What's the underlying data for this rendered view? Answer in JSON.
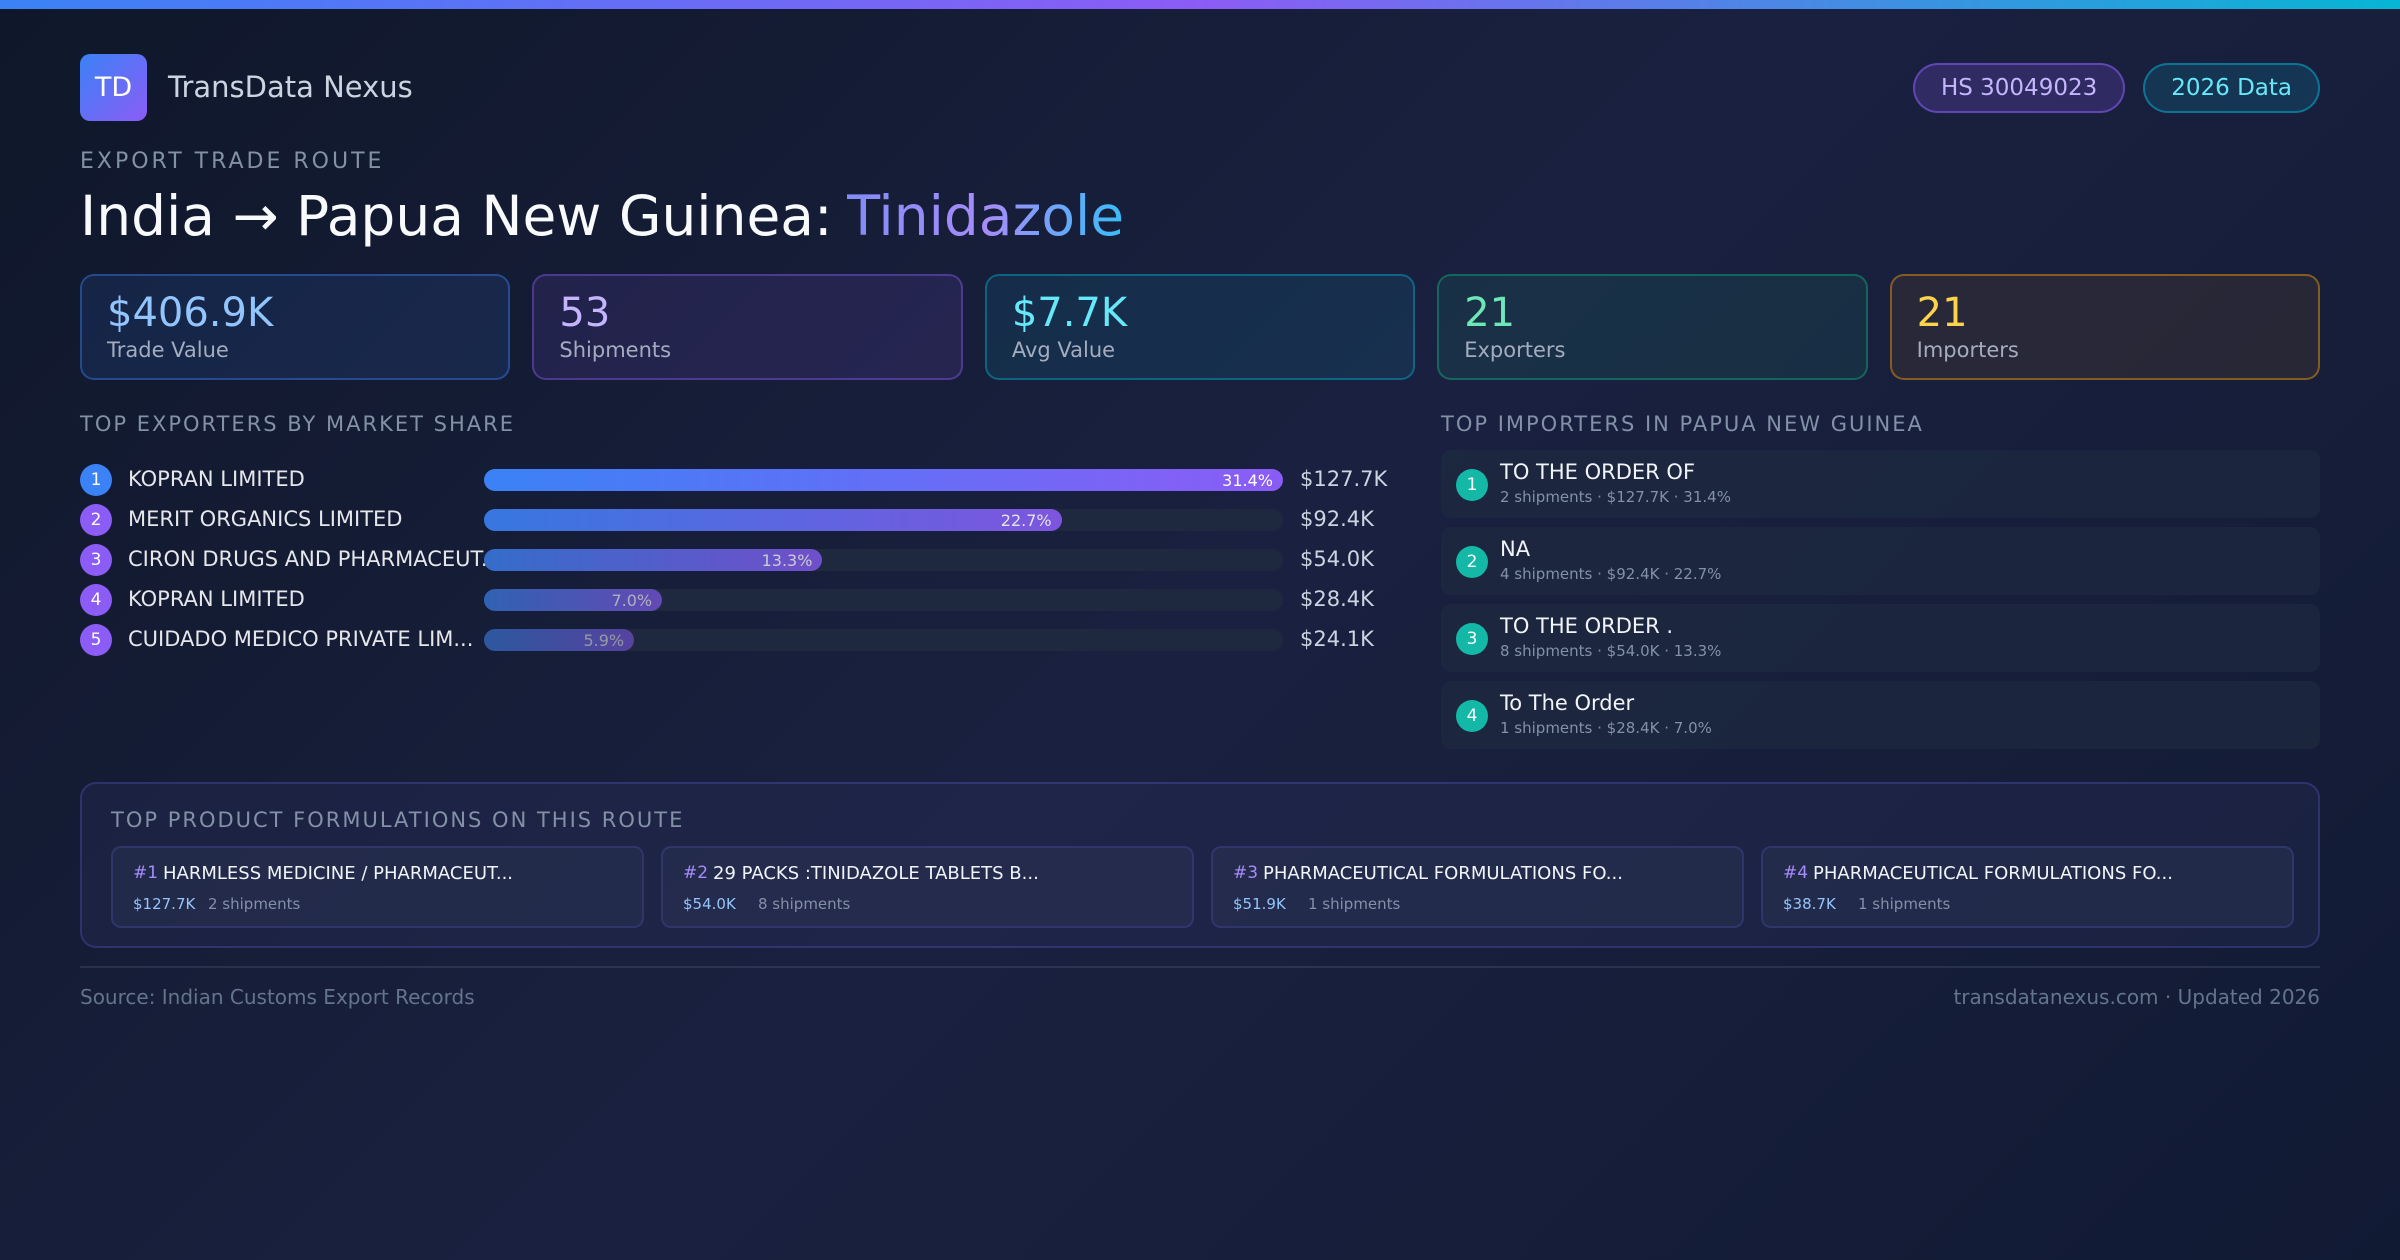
{
  "header": {
    "logo": "TD",
    "brand": "TransData Nexus",
    "badges": [
      "HS 30049023",
      "2026 Data"
    ]
  },
  "route": {
    "eyebrow": "EXPORT TRADE ROUTE",
    "title_prefix": "India → Papua New Guinea:",
    "title_product": "Tinidazole"
  },
  "kpis": [
    {
      "value": "$406.9K",
      "label": "Trade Value"
    },
    {
      "value": "53",
      "label": "Shipments"
    },
    {
      "value": "$7.7K",
      "label": "Avg Value"
    },
    {
      "value": "21",
      "label": "Exporters"
    },
    {
      "value": "21",
      "label": "Importers"
    }
  ],
  "exporters": {
    "heading": "TOP EXPORTERS BY MARKET SHARE",
    "rows": [
      {
        "rank": "1",
        "name": "KOPRAN LIMITED",
        "share": 31.4,
        "share_label": "31.4%",
        "value": "$127.7K"
      },
      {
        "rank": "2",
        "name": "MERIT ORGANICS LIMITED",
        "share": 22.7,
        "share_label": "22.7%",
        "value": "$92.4K"
      },
      {
        "rank": "3",
        "name": "CIRON DRUGS AND PHARMACEUT...",
        "share": 13.3,
        "share_label": "13.3%",
        "value": "$54.0K"
      },
      {
        "rank": "4",
        "name": "KOPRAN LIMITED",
        "share": 7.0,
        "share_label": "7.0%",
        "value": "$28.4K"
      },
      {
        "rank": "5",
        "name": "CUIDADO MEDICO PRIVATE LIM...",
        "share": 5.9,
        "share_label": "5.9%",
        "value": "$24.1K"
      }
    ]
  },
  "importers": {
    "heading": "TOP IMPORTERS IN PAPUA NEW GUINEA",
    "rows": [
      {
        "rank": "1",
        "name": "TO THE ORDER OF",
        "detail": "2 shipments · $127.7K · 31.4%"
      },
      {
        "rank": "2",
        "name": "NA",
        "detail": "4 shipments · $92.4K · 22.7%"
      },
      {
        "rank": "3",
        "name": "TO THE ORDER .",
        "detail": "8 shipments · $54.0K · 13.3%"
      },
      {
        "rank": "4",
        "name": "To The Order",
        "detail": "1 shipments · $28.4K · 7.0%"
      }
    ]
  },
  "formulations": {
    "heading": "TOP PRODUCT FORMULATIONS ON THIS ROUTE",
    "items": [
      {
        "rank": "#1",
        "name": "HARMLESS MEDICINE / PHARMACEUT...",
        "value": "$127.7K",
        "shipments": "2 shipments"
      },
      {
        "rank": "#2",
        "name": "29 PACKS :TINIDAZOLE TABLETS B...",
        "value": "$54.0K",
        "shipments": "8 shipments"
      },
      {
        "rank": "#3",
        "name": "PHARMACEUTICAL FORMULATIONS FO...",
        "value": "$51.9K",
        "shipments": "1 shipments"
      },
      {
        "rank": "#4",
        "name": "PHARMACEUTICAL FORMULATIONS FO...",
        "value": "$38.7K",
        "shipments": "1 shipments"
      }
    ]
  },
  "footer": {
    "source": "Source: Indian Customs Export Records",
    "site": "transdatanexus.com · Updated 2026"
  }
}
